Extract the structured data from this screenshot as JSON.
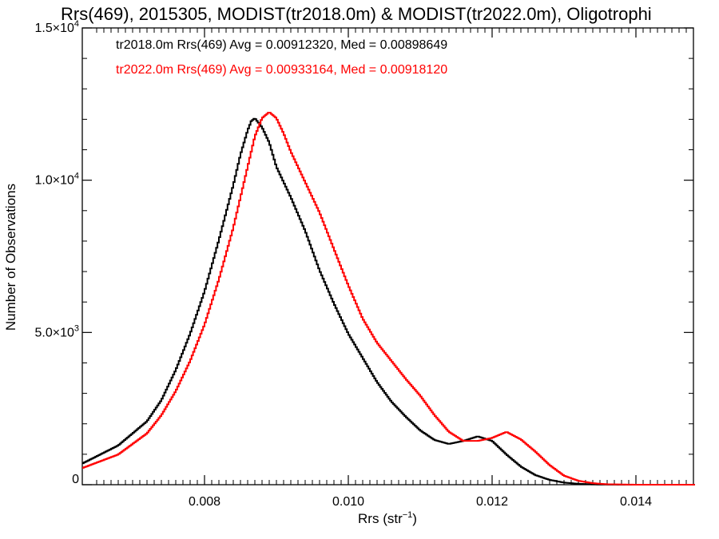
{
  "chart_data": {
    "type": "line",
    "title": "Rrs(469), 2015305, MODIST(tr2018.0m) & MODIST(tr2022.0m), Oligotrophi",
    "xlabel_main": "Rrs (str",
    "xlabel_sup": "−1",
    "xlabel_close": ")",
    "ylabel": "Number of Observations",
    "xlim": [
      0.0063,
      0.0148
    ],
    "ylim": [
      0,
      15000
    ],
    "xticks": [
      {
        "value": 0.008,
        "label": "0.008"
      },
      {
        "value": 0.01,
        "label": "0.010"
      },
      {
        "value": 0.012,
        "label": "0.012"
      },
      {
        "value": 0.014,
        "label": "0.014"
      }
    ],
    "yticks": [
      {
        "value": 0,
        "base": "0",
        "exp": ""
      },
      {
        "value": 5000,
        "base": "5.0×10",
        "exp": "3"
      },
      {
        "value": 10000,
        "base": "1.0×10",
        "exp": "4"
      },
      {
        "value": 15000,
        "base": "1.5×10",
        "exp": "4"
      }
    ],
    "legend": [
      {
        "text": "tr2018.0m Rrs(469) Avg = 0.00912320, Med = 0.00898649",
        "color": "#000000"
      },
      {
        "text": "tr2022.0m Rrs(469) Avg = 0.00933164, Med = 0.00918120",
        "color": "#ff0000"
      }
    ],
    "series": [
      {
        "color": "#000000",
        "x": [
          0.0063,
          0.0068,
          0.0072,
          0.0074,
          0.0076,
          0.0078,
          0.008,
          0.0082,
          0.0084,
          0.0085,
          0.0086,
          0.00865,
          0.0087,
          0.0088,
          0.0089,
          0.009,
          0.0092,
          0.0094,
          0.0096,
          0.0098,
          0.01,
          0.0102,
          0.0104,
          0.0106,
          0.0108,
          0.011,
          0.0112,
          0.0114,
          0.0116,
          0.0118,
          0.012,
          0.0122,
          0.0124,
          0.0126,
          0.0128,
          0.013,
          0.0132,
          0.0134,
          0.0138,
          0.0148
        ],
        "values": [
          700,
          1300,
          2100,
          2800,
          3800,
          5000,
          6400,
          8100,
          9900,
          10900,
          11700,
          12000,
          12100,
          11800,
          11300,
          10500,
          9500,
          8400,
          7100,
          6000,
          5000,
          4200,
          3400,
          2750,
          2250,
          1800,
          1480,
          1350,
          1450,
          1600,
          1450,
          1000,
          600,
          320,
          160,
          70,
          30,
          10,
          0,
          0
        ]
      },
      {
        "color": "#ff0000",
        "x": [
          0.0063,
          0.0068,
          0.0072,
          0.0074,
          0.0076,
          0.0078,
          0.008,
          0.0082,
          0.0084,
          0.0086,
          0.0087,
          0.0088,
          0.0089,
          0.009,
          0.0091,
          0.0092,
          0.0094,
          0.0096,
          0.0098,
          0.01,
          0.0102,
          0.0104,
          0.0106,
          0.0108,
          0.011,
          0.0112,
          0.0114,
          0.0116,
          0.0118,
          0.012,
          0.0122,
          0.0124,
          0.0126,
          0.0128,
          0.013,
          0.0132,
          0.0134,
          0.0136,
          0.014,
          0.0148
        ],
        "values": [
          550,
          1000,
          1700,
          2300,
          3100,
          4100,
          5300,
          6800,
          8500,
          10500,
          11500,
          12100,
          12300,
          12100,
          11600,
          11000,
          10000,
          9000,
          7800,
          6600,
          5500,
          4700,
          4100,
          3500,
          2950,
          2300,
          1750,
          1450,
          1450,
          1550,
          1750,
          1500,
          1100,
          650,
          300,
          130,
          50,
          15,
          0,
          0
        ]
      }
    ]
  }
}
